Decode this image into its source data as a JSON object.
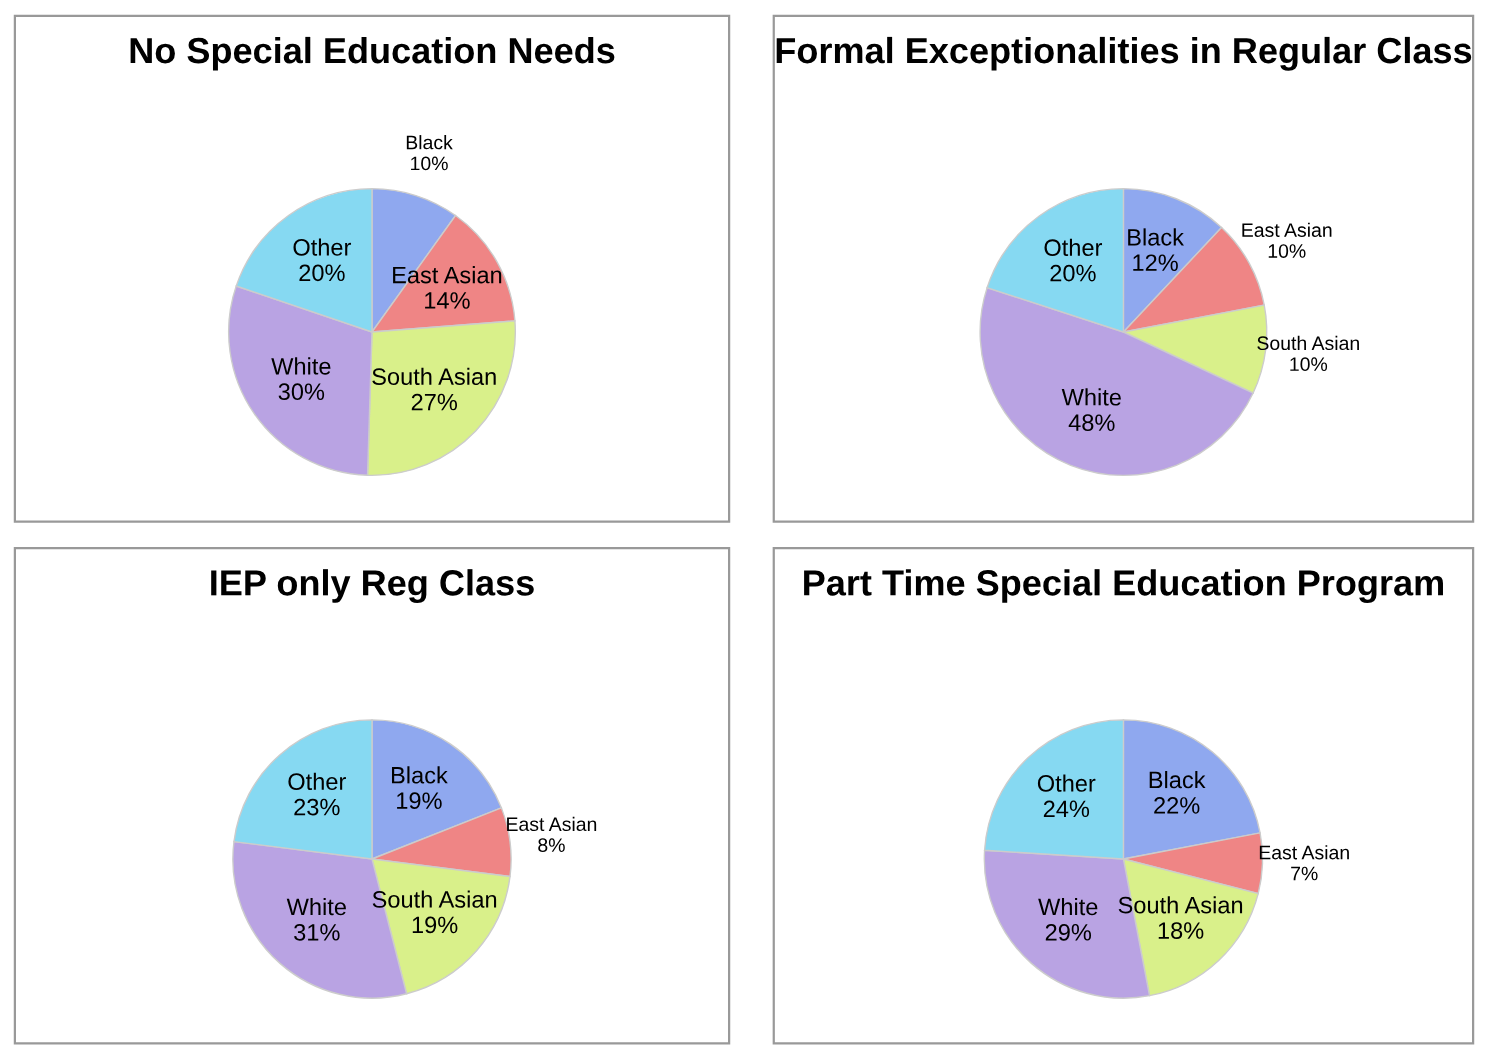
{
  "chart_data": [
    {
      "type": "pie",
      "title": "No Special Education Needs",
      "categories": [
        "Black",
        "East Asian",
        "South Asian",
        "White",
        "Other"
      ],
      "values": [
        10,
        14,
        27,
        30,
        20
      ],
      "value_labels": [
        "10%",
        "14%",
        "27%",
        "30%",
        "20%"
      ],
      "colors": [
        "#8fa8ef",
        "#ef8585",
        "#d9f08a",
        "#b9a3e3",
        "#86d9f2"
      ]
    },
    {
      "type": "pie",
      "title": "Formal Exceptionalities in Regular Class",
      "categories": [
        "Black",
        "East Asian",
        "South Asian",
        "White",
        "Other"
      ],
      "values": [
        12,
        10,
        10,
        48,
        20
      ],
      "value_labels": [
        "12%",
        "10%",
        "10%",
        "48%",
        "20%"
      ],
      "colors": [
        "#8fa8ef",
        "#ef8585",
        "#d9f08a",
        "#b9a3e3",
        "#86d9f2"
      ]
    },
    {
      "type": "pie",
      "title": "IEP only Reg Class",
      "categories": [
        "Black",
        "East Asian",
        "South Asian",
        "White",
        "Other"
      ],
      "values": [
        19,
        8,
        19,
        31,
        23
      ],
      "value_labels": [
        "19%",
        "8%",
        "19%",
        "31%",
        "23%"
      ],
      "colors": [
        "#8fa8ef",
        "#ef8585",
        "#d9f08a",
        "#b9a3e3",
        "#86d9f2"
      ]
    },
    {
      "type": "pie",
      "title": "Part Time Special Education Program",
      "categories": [
        "Black",
        "East Asian",
        "South Asian",
        "White",
        "Other"
      ],
      "values": [
        22,
        7,
        18,
        29,
        24
      ],
      "value_labels": [
        "22%",
        "7%",
        "18%",
        "29%",
        "24%"
      ],
      "colors": [
        "#8fa8ef",
        "#ef8585",
        "#d9f08a",
        "#b9a3e3",
        "#86d9f2"
      ]
    }
  ]
}
